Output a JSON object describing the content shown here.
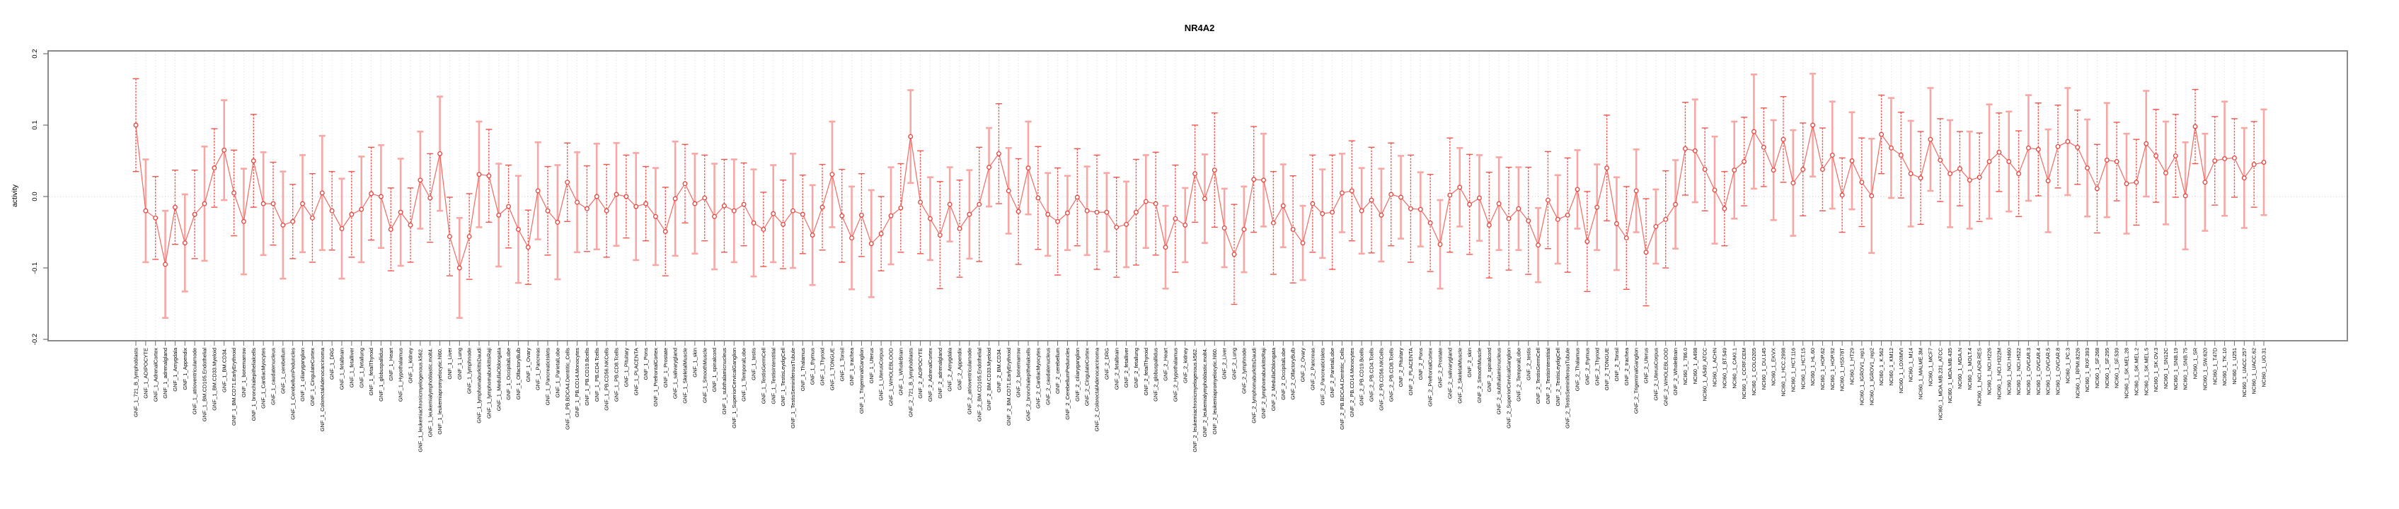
{
  "title": "NR4A2",
  "colors": {
    "accent_point": "#e8423c",
    "accent_line": "#ee5a52",
    "error_bar_bright": "#f0564e",
    "error_bar_light": "#f7a8a5",
    "grid": "#dadada",
    "zero_line": "#cccccc",
    "axis_frame": "#8a8a8a",
    "tick": "#707070",
    "text": "#000000"
  },
  "chart_data": {
    "type": "line",
    "title": "NR4A2",
    "xlabel": "",
    "ylabel": "activity",
    "ylim": [
      -0.2,
      0.2
    ],
    "ytick_labels": [
      "-0.2",
      "-0.1",
      "0.0",
      "0.1",
      "0.2"
    ],
    "ytick_values": [
      -0.2,
      -0.1,
      0.0,
      0.1,
      0.2
    ],
    "legend": "none",
    "grid": "vertical dotted gridline at every category; dotted horizontal line at 0.0",
    "marker": "open-circle with vertical error bars",
    "n_points": 218,
    "gnf_tissue_names": [
      "721_B_lymphoblasts",
      "ADIPOCYTE",
      "AdrenalCortex",
      "adrenalgland",
      "Amygdala",
      "Appendix",
      "atrioventricularnode",
      "BM.CD105.Endothelial",
      "BM.CD33.Myeloid",
      "BM.CD34.",
      "BM.CD71.EarlyErythroid",
      "bonemarrow",
      "bronchialepithelialcells",
      "CardiacMyocytes",
      "caudatenucleus",
      "cerebellum",
      "CerebellumPeduncles",
      "ciliaryganglion",
      "CingulateCortex",
      "ColorectalAdenocarcinoma",
      "DRG",
      "fetalbrain",
      "fetalliver",
      "fetallung",
      "fetalThyroid",
      "globuspallidus",
      "Heart",
      "Hypothalamus",
      "kidney",
      "leukemiachronicmyelogenous.k562.",
      "leukemialymphoblastic.molt4.",
      "leukemiapromyelocytic.hl60.",
      "Liver",
      "Lung",
      "lymphnode",
      "lymphomaburkittsDaudi",
      "lymphomaburkittsRaji",
      "MedullaOblongata",
      "OccipitalLobe",
      "OlfactoryBulb",
      "Ovary",
      "Pancreas",
      "PancreaticIslets",
      "ParietalLobe",
      "PB.BDCA4.Dentritic_Cells",
      "PB.CD14.Monocytes",
      "PB.CD19.Bcells",
      "PB.CD4.Tcells",
      "PB.CD56.NKCells",
      "PB.CD8.Tcells",
      "Pituitary",
      "PLACENTA",
      "Pons",
      "PrefrontalCortex",
      "Prostate",
      "salivarygland",
      "SkeletalMuscle",
      "skin",
      "SmoothMuscle",
      "spinalcord",
      "subthalamicnucleus",
      "SuperiorCervicalGanglion",
      "TemporalLobe",
      "testis",
      "TestisGermCell",
      "TestisInterstitial",
      "TestisLeydigCell",
      "TestisSeminiferousTubule",
      "Thalamus",
      "thymus",
      "Thyroid",
      "TONGUE",
      "Tonsil",
      "trachea",
      "TrigeminalGanglion",
      "Uterus",
      "UterusCorpus",
      "WHOLEBLOOD",
      "WholeBrain"
    ],
    "nci60_cell_lines": [
      "786.0",
      "A498",
      "A549_ATCC",
      "ACHN",
      "BT.549",
      "CAKI.1",
      "CCRF.CEM",
      "COLO205",
      "DU.145",
      "EKVX",
      "HCC.2998",
      "HCT.116",
      "HCT.15",
      "HL.60",
      "HOP.62",
      "HOP.92",
      "HS578T",
      "HT29",
      "IGROV1_rep1",
      "IGROV1_rep2",
      "K.562",
      "KM12",
      "LOXIMVI",
      "M14",
      "MALME.3M",
      "MCF7",
      "MDA.MB.231_ATCC",
      "MDA.MB.435",
      "MDA.N",
      "MOLT.4",
      "NCI.ADR.RES",
      "NCI.H226",
      "NCI.H322M",
      "NCI.H460",
      "NCI.H522",
      "OVCAR.3",
      "OVCAR.4",
      "OVCAR.5",
      "OVCAR.8",
      "PC.3",
      "RPMI.8226",
      "RXF.393",
      "SF.268",
      "SF.295",
      "SF.539",
      "SK.MEL.28",
      "SK.MEL.2",
      "SK.MEL.5",
      "SK.OV.3",
      "SN12C",
      "SNB.19",
      "SNB.75",
      "SR",
      "SW.620",
      "T47D",
      "TK.10",
      "U251",
      "UACC.257",
      "UACC.62",
      "UO.31"
    ],
    "groups": [
      {
        "prefix": "GNF_1_",
        "names_key": "gnf_tissue_names",
        "values": [
          0.1,
          -0.02,
          -0.03,
          -0.095,
          -0.015,
          -0.065,
          -0.025,
          -0.01,
          0.04,
          0.065,
          0.005,
          -0.035,
          0.05,
          -0.01,
          -0.01,
          -0.04,
          -0.035,
          -0.01,
          -0.03,
          0.005,
          -0.02,
          -0.045,
          -0.025,
          -0.018,
          0.004,
          0.0,
          -0.046,
          -0.022,
          -0.04,
          0.023,
          -0.002,
          0.06,
          -0.056,
          -0.1,
          -0.056,
          0.031,
          0.029,
          -0.026,
          -0.014,
          -0.046,
          -0.071,
          0.008,
          -0.02,
          -0.036,
          0.02,
          -0.008,
          -0.017,
          0.0,
          -0.02,
          0.003,
          0.0,
          -0.014,
          -0.01,
          -0.028,
          -0.049,
          -0.003,
          0.018,
          -0.01,
          -0.002,
          -0.028,
          -0.013,
          -0.02,
          -0.011,
          -0.037,
          -0.046,
          -0.024,
          -0.039,
          -0.02,
          -0.025,
          -0.054,
          -0.015,
          0.031,
          -0.027,
          -0.058,
          -0.026,
          -0.066,
          -0.052,
          -0.027,
          -0.016
        ],
        "errors": [
          0.065,
          0.072,
          0.058,
          0.075,
          0.052,
          0.068,
          0.062,
          0.08,
          0.055,
          0.07,
          0.06,
          0.074,
          0.065,
          0.072,
          0.058,
          0.075,
          0.052,
          0.068,
          0.062,
          0.08,
          0.055,
          0.07,
          0.06,
          0.074,
          0.065,
          0.072,
          0.058,
          0.075,
          0.052,
          0.068,
          0.062,
          0.08,
          0.055,
          0.07,
          0.06,
          0.074,
          0.065,
          0.072,
          0.058,
          0.075,
          0.052,
          0.068,
          0.062,
          0.08,
          0.055,
          0.07,
          0.06,
          0.074,
          0.065,
          0.072,
          0.058,
          0.075,
          0.052,
          0.068,
          0.062,
          0.08,
          0.055,
          0.07,
          0.06,
          0.074,
          0.065,
          0.072,
          0.058,
          0.075,
          0.052,
          0.068,
          0.062,
          0.08,
          0.055,
          0.07,
          0.06,
          0.074,
          0.065,
          0.072,
          0.058,
          0.075,
          0.052,
          0.068,
          0.062
        ]
      },
      {
        "prefix": "GNF_2_",
        "names_key": "gnf_tissue_names",
        "values": [
          0.084,
          -0.008,
          -0.031,
          -0.054,
          -0.011,
          -0.045,
          -0.025,
          -0.011,
          0.041,
          0.06,
          0.008,
          -0.021,
          0.04,
          -0.002,
          -0.025,
          -0.035,
          -0.023,
          -0.001,
          -0.02,
          -0.022,
          -0.022,
          -0.043,
          -0.039,
          -0.022,
          -0.007,
          -0.01,
          -0.071,
          -0.031,
          -0.04,
          0.032,
          -0.003,
          0.037,
          -0.044,
          -0.081,
          -0.046,
          0.024,
          0.023,
          -0.037,
          -0.013,
          -0.046,
          -0.065,
          -0.01,
          -0.024,
          -0.022,
          0.005,
          0.008,
          -0.02,
          -0.005,
          -0.026,
          0.003,
          -0.001,
          -0.017,
          -0.018,
          -0.037,
          -0.067,
          0.002,
          0.013,
          -0.011,
          -0.002,
          -0.04,
          -0.01,
          -0.031,
          -0.017,
          -0.034,
          -0.068,
          -0.005,
          -0.032,
          -0.026,
          0.01,
          -0.063,
          -0.015,
          0.04,
          -0.038,
          -0.058,
          0.008,
          -0.078,
          -0.042,
          -0.032,
          -0.011
        ],
        "errors": [
          0.065,
          0.072,
          0.058,
          0.075,
          0.052,
          0.068,
          0.062,
          0.08,
          0.055,
          0.07,
          0.06,
          0.074,
          0.065,
          0.072,
          0.058,
          0.075,
          0.052,
          0.068,
          0.062,
          0.08,
          0.055,
          0.07,
          0.06,
          0.074,
          0.065,
          0.072,
          0.058,
          0.075,
          0.052,
          0.068,
          0.062,
          0.08,
          0.055,
          0.07,
          0.06,
          0.074,
          0.065,
          0.072,
          0.058,
          0.075,
          0.052,
          0.068,
          0.062,
          0.08,
          0.055,
          0.07,
          0.06,
          0.074,
          0.065,
          0.072,
          0.058,
          0.075,
          0.052,
          0.068,
          0.062,
          0.08,
          0.055,
          0.07,
          0.06,
          0.074,
          0.065,
          0.072,
          0.058,
          0.075,
          0.052,
          0.068,
          0.062,
          0.08,
          0.055,
          0.07,
          0.06,
          0.074,
          0.065,
          0.072,
          0.058,
          0.075,
          0.052,
          0.068,
          0.062
        ]
      },
      {
        "prefix": "NCI60_1_",
        "names_key": "nci60_cell_lines",
        "values": [
          0.067,
          0.064,
          0.038,
          0.009,
          -0.017,
          0.037,
          0.049,
          0.091,
          0.069,
          0.037,
          0.08,
          0.019,
          0.038,
          0.1,
          0.038,
          0.058,
          0.002,
          0.05,
          0.02,
          0.001,
          0.087,
          0.068,
          0.058,
          0.032,
          0.026,
          0.08,
          0.051,
          0.032,
          0.039,
          0.023,
          0.027,
          0.049,
          0.062,
          0.049,
          0.032,
          0.068,
          0.066,
          0.022,
          0.07,
          0.077,
          0.069,
          0.04,
          0.011,
          0.051,
          0.049,
          0.018,
          0.02,
          0.074,
          0.057,
          0.033,
          0.057,
          0.001,
          0.098,
          0.02,
          0.05,
          0.053,
          0.054,
          0.026,
          0.045,
          0.048
        ],
        "errors": [
          0.065,
          0.072,
          0.058,
          0.075,
          0.052,
          0.068,
          0.062,
          0.08,
          0.055,
          0.07,
          0.06,
          0.074,
          0.065,
          0.072,
          0.058,
          0.075,
          0.052,
          0.068,
          0.062,
          0.08,
          0.055,
          0.07,
          0.06,
          0.074,
          0.065,
          0.072,
          0.058,
          0.075,
          0.052,
          0.068,
          0.062,
          0.08,
          0.055,
          0.07,
          0.06,
          0.074,
          0.065,
          0.072,
          0.058,
          0.075,
          0.052,
          0.068,
          0.062,
          0.08,
          0.055,
          0.07,
          0.06,
          0.074,
          0.065,
          0.072,
          0.058,
          0.075,
          0.052,
          0.068,
          0.062,
          0.08,
          0.055,
          0.07,
          0.06,
          0.074
        ]
      }
    ]
  }
}
